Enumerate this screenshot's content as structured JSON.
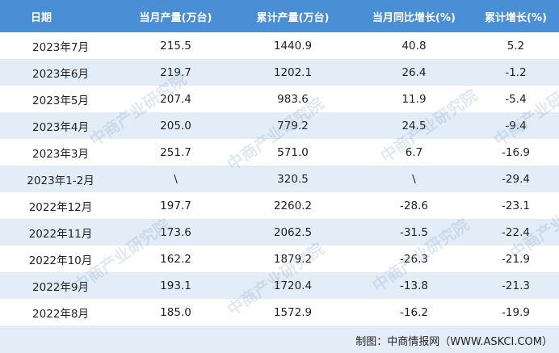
{
  "header": {
    "date": "日期",
    "monthly_output": "当月产量(万台)",
    "cumulative_output": "累计产量(万台)",
    "monthly_yoy": "当月同比增长(%)",
    "cumulative_growth": "累计增长(%)"
  },
  "rows": [
    {
      "date": "2023年7月",
      "monthly": "215.5",
      "cumulative": "1440.9",
      "yoy": "40.8",
      "growth": "5.2"
    },
    {
      "date": "2023年6月",
      "monthly": "219.7",
      "cumulative": "1202.1",
      "yoy": "26.4",
      "growth": "-1.2"
    },
    {
      "date": "2023年5月",
      "monthly": "207.4",
      "cumulative": "983.6",
      "yoy": "11.9",
      "growth": "-5.4"
    },
    {
      "date": "2023年4月",
      "monthly": "205.0",
      "cumulative": "779.2",
      "yoy": "24.5",
      "growth": "-9.4"
    },
    {
      "date": "2023年3月",
      "monthly": "251.7",
      "cumulative": "571.0",
      "yoy": "6.7",
      "growth": "-16.9"
    },
    {
      "date": "2023年1-2月",
      "monthly": "\\",
      "cumulative": "320.5",
      "yoy": "\\",
      "growth": "-29.4"
    },
    {
      "date": "2022年12月",
      "monthly": "197.7",
      "cumulative": "2260.2",
      "yoy": "-28.6",
      "growth": "-23.1"
    },
    {
      "date": "2022年11月",
      "monthly": "173.6",
      "cumulative": "2062.5",
      "yoy": "-31.5",
      "growth": "-22.4"
    },
    {
      "date": "2022年10月",
      "monthly": "162.2",
      "cumulative": "1879.2",
      "yoy": "-26.3",
      "growth": "-21.9"
    },
    {
      "date": "2022年9月",
      "monthly": "193.1",
      "cumulative": "1720.4",
      "yoy": "-13.8",
      "growth": "-21.3"
    },
    {
      "date": "2022年8月",
      "monthly": "185.0",
      "cumulative": "1572.9",
      "yoy": "-16.2",
      "growth": "-19.9"
    }
  ],
  "footer": "制图：中商情报网（WWW.ASKCI.COM）",
  "watermark": "中商产业研究院",
  "colors": {
    "header_bg": "#4a8fd6",
    "stripe_bg": "#e3edf8"
  }
}
